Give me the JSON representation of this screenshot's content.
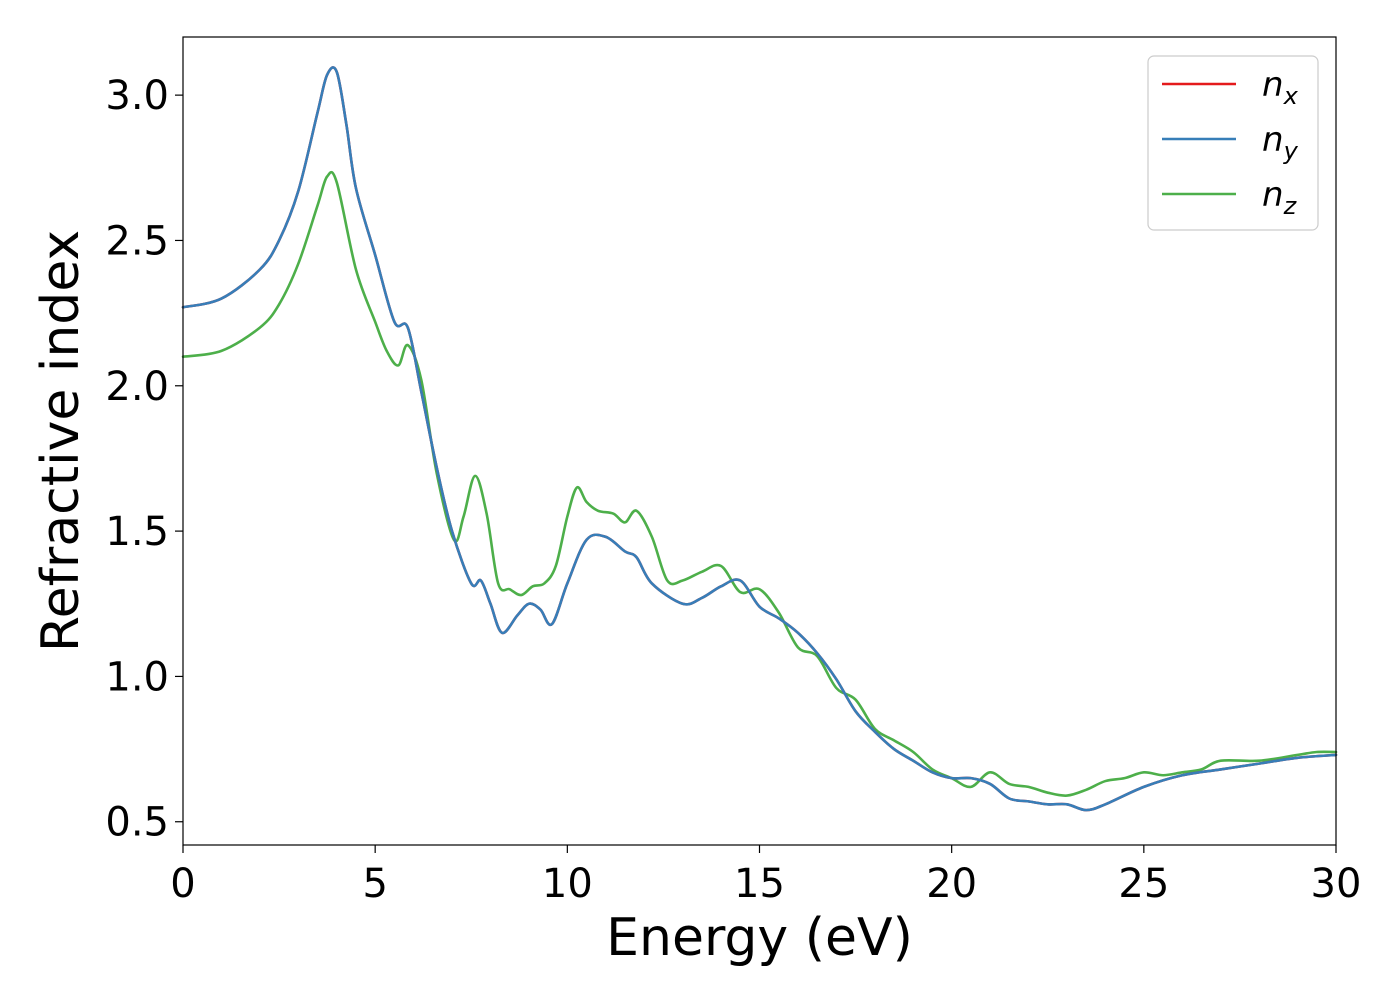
{
  "chart_data": {
    "type": "line",
    "title": "",
    "xlabel": "Energy (eV)",
    "ylabel": "Refractive index",
    "xlim": [
      0,
      30
    ],
    "ylim": [
      0.42,
      3.2
    ],
    "x_ticks": [
      0,
      5,
      10,
      15,
      20,
      25,
      30
    ],
    "x_tick_labels": [
      "0",
      "5",
      "10",
      "15",
      "20",
      "25",
      "30"
    ],
    "y_ticks": [
      0.5,
      1.0,
      1.5,
      2.0,
      2.5,
      3.0
    ],
    "y_tick_labels": [
      "0.5",
      "1.0",
      "1.5",
      "2.0",
      "2.5",
      "3.0"
    ],
    "grid": false,
    "legend_position": "top-right",
    "colors": {
      "n_x": "#e41a1c",
      "n_y": "#377eb8",
      "n_z": "#4daf4a"
    },
    "series": [
      {
        "name": "n",
        "subscript": "x",
        "color": "#e41a1c",
        "x": [
          0,
          1,
          2,
          2.5,
          3,
          3.5,
          3.75,
          4.0,
          4.25,
          4.5,
          5.0,
          5.5,
          5.85,
          6.2,
          6.6,
          7.0,
          7.5,
          7.75,
          8.0,
          8.3,
          8.7,
          9.0,
          9.3,
          9.6,
          10.0,
          10.5,
          11.0,
          11.5,
          11.8,
          12.2,
          13.0,
          13.5,
          14.0,
          14.5,
          15.0,
          15.5,
          16.0,
          16.5,
          17.0,
          17.5,
          18.0,
          18.5,
          19.0,
          19.5,
          20.0,
          20.5,
          21.0,
          21.5,
          22.0,
          22.5,
          23.0,
          23.5,
          24.0,
          25.0,
          26.0,
          27.0,
          28.0,
          29.0,
          30.0
        ],
        "values": [
          2.27,
          2.3,
          2.4,
          2.5,
          2.67,
          2.94,
          3.07,
          3.08,
          2.9,
          2.68,
          2.45,
          2.22,
          2.2,
          1.98,
          1.72,
          1.5,
          1.32,
          1.33,
          1.25,
          1.15,
          1.21,
          1.25,
          1.23,
          1.18,
          1.32,
          1.47,
          1.48,
          1.43,
          1.41,
          1.32,
          1.25,
          1.27,
          1.31,
          1.33,
          1.24,
          1.2,
          1.15,
          1.08,
          0.99,
          0.88,
          0.81,
          0.75,
          0.71,
          0.67,
          0.65,
          0.65,
          0.63,
          0.58,
          0.57,
          0.56,
          0.56,
          0.54,
          0.56,
          0.62,
          0.66,
          0.68,
          0.7,
          0.72,
          0.73
        ]
      },
      {
        "name": "n",
        "subscript": "y",
        "color": "#377eb8",
        "x": [
          0,
          1,
          2,
          2.5,
          3,
          3.5,
          3.75,
          4.0,
          4.25,
          4.5,
          5.0,
          5.5,
          5.85,
          6.2,
          6.6,
          7.0,
          7.5,
          7.75,
          8.0,
          8.3,
          8.7,
          9.0,
          9.3,
          9.6,
          10.0,
          10.5,
          11.0,
          11.5,
          11.8,
          12.2,
          13.0,
          13.5,
          14.0,
          14.5,
          15.0,
          15.5,
          16.0,
          16.5,
          17.0,
          17.5,
          18.0,
          18.5,
          19.0,
          19.5,
          20.0,
          20.5,
          21.0,
          21.5,
          22.0,
          22.5,
          23.0,
          23.5,
          24.0,
          25.0,
          26.0,
          27.0,
          28.0,
          29.0,
          30.0
        ],
        "values": [
          2.27,
          2.3,
          2.4,
          2.5,
          2.67,
          2.94,
          3.07,
          3.08,
          2.9,
          2.68,
          2.45,
          2.22,
          2.2,
          1.98,
          1.72,
          1.5,
          1.32,
          1.33,
          1.25,
          1.15,
          1.21,
          1.25,
          1.23,
          1.18,
          1.32,
          1.47,
          1.48,
          1.43,
          1.41,
          1.32,
          1.25,
          1.27,
          1.31,
          1.33,
          1.24,
          1.2,
          1.15,
          1.08,
          0.99,
          0.88,
          0.81,
          0.75,
          0.71,
          0.67,
          0.65,
          0.65,
          0.63,
          0.58,
          0.57,
          0.56,
          0.56,
          0.54,
          0.56,
          0.62,
          0.66,
          0.68,
          0.7,
          0.72,
          0.73
        ]
      },
      {
        "name": "n",
        "subscript": "z",
        "color": "#4daf4a",
        "x": [
          0,
          1,
          2,
          2.5,
          3,
          3.5,
          3.75,
          4.0,
          4.5,
          5.0,
          5.3,
          5.6,
          5.85,
          6.2,
          6.6,
          7.05,
          7.3,
          7.6,
          7.9,
          8.2,
          8.5,
          8.8,
          9.1,
          9.4,
          9.7,
          10.0,
          10.25,
          10.5,
          10.8,
          11.2,
          11.5,
          11.8,
          12.2,
          12.6,
          13.0,
          13.5,
          14.0,
          14.5,
          15.0,
          15.5,
          16.0,
          16.5,
          17.0,
          17.5,
          18.0,
          18.5,
          19.0,
          19.5,
          20.0,
          20.5,
          21.0,
          21.5,
          22.0,
          22.5,
          23.0,
          23.5,
          24.0,
          24.5,
          25.0,
          25.5,
          26.0,
          26.5,
          27.0,
          28.0,
          29.0,
          29.5,
          30.0
        ],
        "values": [
          2.1,
          2.12,
          2.2,
          2.28,
          2.42,
          2.62,
          2.72,
          2.7,
          2.4,
          2.22,
          2.12,
          2.07,
          2.14,
          2.02,
          1.7,
          1.47,
          1.55,
          1.69,
          1.56,
          1.32,
          1.3,
          1.28,
          1.31,
          1.32,
          1.38,
          1.55,
          1.65,
          1.6,
          1.57,
          1.56,
          1.53,
          1.57,
          1.48,
          1.33,
          1.33,
          1.36,
          1.38,
          1.29,
          1.3,
          1.22,
          1.1,
          1.07,
          0.96,
          0.92,
          0.82,
          0.78,
          0.74,
          0.68,
          0.65,
          0.62,
          0.67,
          0.63,
          0.62,
          0.6,
          0.59,
          0.61,
          0.64,
          0.65,
          0.67,
          0.66,
          0.67,
          0.68,
          0.71,
          0.71,
          0.73,
          0.74,
          0.74
        ]
      }
    ]
  }
}
